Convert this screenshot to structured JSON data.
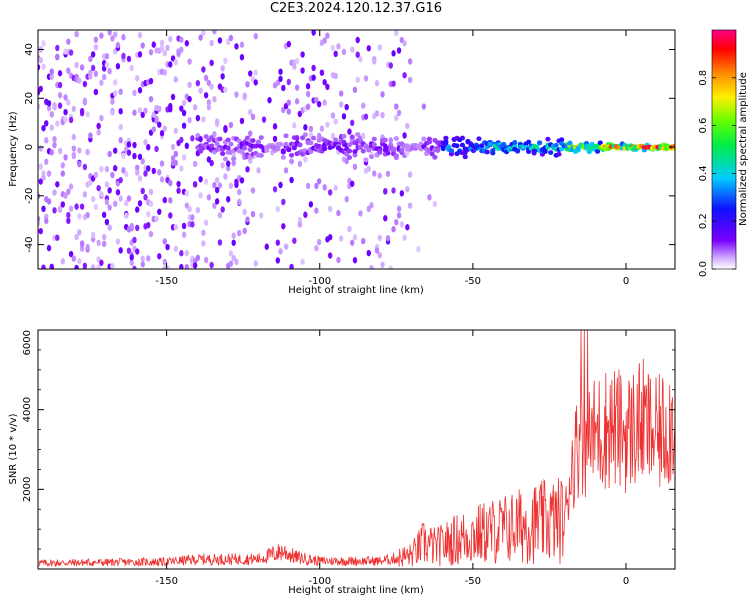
{
  "title": "C2E3.2024.120.12.37.G16",
  "chart_data": [
    {
      "type": "heatmap",
      "xlabel": "Height of straight line (km)",
      "ylabel": "Frequency (Hz)",
      "xlim": [
        -192,
        16
      ],
      "ylim": [
        -50,
        48
      ],
      "x_ticks": [
        -150,
        -100,
        -50,
        0
      ],
      "x_tick_labels": [
        "-150",
        "-100",
        "-50",
        "0"
      ],
      "y_ticks": [
        -40,
        -20,
        0,
        20,
        40
      ],
      "y_tick_labels": [
        "-40",
        "-20",
        "0",
        "20",
        "40"
      ],
      "colorbar": {
        "label": "Normalized spectral amplitude",
        "range": [
          0,
          1
        ],
        "ticks": [
          0.0,
          0.2,
          0.4,
          0.6,
          0.8
        ],
        "tick_labels": [
          "0.0",
          "0.2",
          "0.4",
          "0.6",
          "0.8"
        ],
        "colormap": "rainbow (white-violet-blue-cyan-green-yellow-orange-red-magenta)"
      },
      "annotation": "narrow band concentrated near 0 Hz; broadband noise for heights below about -70 km"
    },
    {
      "type": "line",
      "xlabel": "Height of straight line (km)",
      "ylabel": "SNR (10 * v/v)",
      "xlim": [
        -192,
        16
      ],
      "ylim": [
        0,
        6000
      ],
      "x_ticks": [
        -150,
        -100,
        -50,
        0
      ],
      "x_tick_labels": [
        "-150",
        "-100",
        "-50",
        "0"
      ],
      "y_ticks": [
        2000,
        4000,
        6000
      ],
      "y_tick_labels": [
        "2000",
        "4000",
        "6000"
      ],
      "color": "#ee3030",
      "profile": {
        "x": [
          -192,
          -150,
          -140,
          -120,
          -112,
          -108,
          -100,
          -80,
          -70,
          -66,
          -62,
          -55,
          -50,
          -40,
          -30,
          -25,
          -20,
          -18,
          -15,
          -12,
          -10,
          -5,
          0,
          5,
          10,
          16
        ],
        "y": [
          150,
          180,
          240,
          250,
          450,
          300,
          200,
          200,
          350,
          650,
          550,
          750,
          850,
          1000,
          1150,
          1200,
          1250,
          2500,
          3300,
          3200,
          3400,
          3600,
          3400,
          3700,
          3300,
          3800
        ]
      }
    }
  ]
}
